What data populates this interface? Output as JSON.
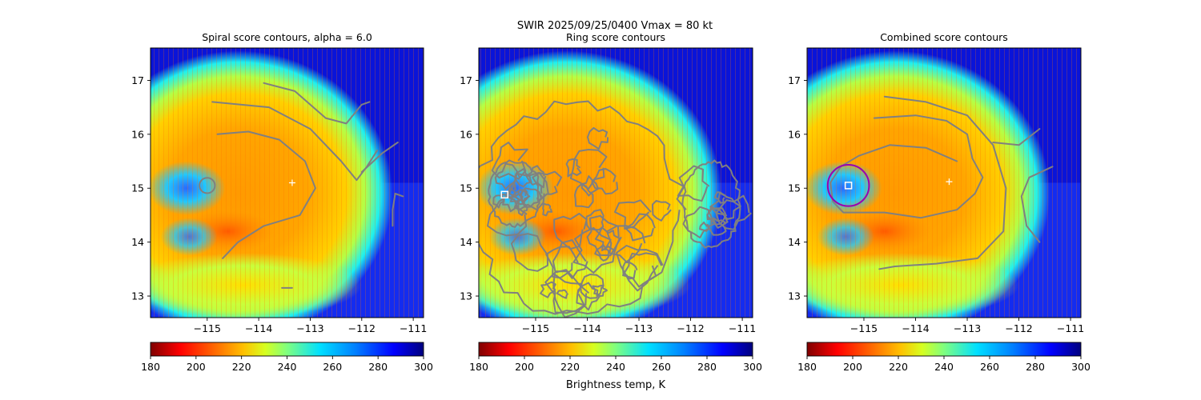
{
  "figure": {
    "suptitle": "SWIR  2025/09/25/0400    Vmax = 80 kt",
    "colorbar_label": "Brightness temp, K"
  },
  "chart_data": [
    {
      "type": "heatmap",
      "title": "Spiral score contours, alpha =  6.0",
      "xlim": [
        -116.1,
        -110.8
      ],
      "ylim": [
        12.6,
        17.6
      ],
      "xticks": [
        -115,
        -114,
        -113,
        -112,
        -111
      ],
      "xtick_labels": [
        "−115",
        "−114",
        "−113",
        "−112",
        "−111"
      ],
      "yticks": [
        13,
        14,
        15,
        16,
        17
      ],
      "ytick_labels": [
        "13",
        "14",
        "15",
        "16",
        "17"
      ],
      "storm_center": [
        -113.35,
        15.1
      ],
      "contours": [
        [
          [
            -114.8,
            16.0
          ],
          [
            -114.2,
            16.05
          ],
          [
            -113.6,
            15.9
          ],
          [
            -113.1,
            15.5
          ],
          [
            -112.9,
            15.0
          ],
          [
            -113.2,
            14.5
          ],
          [
            -113.9,
            14.3
          ],
          [
            -114.4,
            14.0
          ],
          [
            -114.7,
            13.7
          ]
        ],
        [
          [
            -114.9,
            16.6
          ],
          [
            -113.8,
            16.5
          ],
          [
            -113.0,
            16.1
          ],
          [
            -112.4,
            15.5
          ],
          [
            -112.1,
            15.15
          ],
          [
            -111.9,
            15.4
          ],
          [
            -111.7,
            15.7
          ]
        ],
        [
          [
            -113.9,
            16.95
          ],
          [
            -113.3,
            16.8
          ],
          [
            -112.7,
            16.3
          ],
          [
            -112.3,
            16.2
          ],
          [
            -112.0,
            16.55
          ],
          [
            -111.85,
            16.6
          ]
        ],
        [
          [
            -112.0,
            15.3
          ],
          [
            -111.6,
            15.65
          ],
          [
            -111.3,
            15.85
          ]
        ],
        [
          [
            -111.2,
            14.85
          ],
          [
            -111.35,
            14.9
          ],
          [
            -111.4,
            14.6
          ],
          [
            -111.4,
            14.3
          ]
        ],
        [
          [
            -113.55,
            13.15
          ],
          [
            -113.35,
            13.15
          ]
        ]
      ],
      "marked_circle": {
        "center": [
          -115.0,
          15.05
        ],
        "radius_deg": 0.15
      },
      "colormap": {
        "name": "jet_r",
        "vmin": 180,
        "vmax": 300,
        "ticks": [
          180,
          200,
          220,
          240,
          260,
          280,
          300
        ]
      }
    },
    {
      "type": "heatmap",
      "title": "Ring score contours",
      "xlim": [
        -116.1,
        -110.8
      ],
      "ylim": [
        12.6,
        17.6
      ],
      "xticks": [
        -115,
        -114,
        -113,
        -112,
        -111
      ],
      "xtick_labels": [
        "−115",
        "−114",
        "−113",
        "−112",
        "−111"
      ],
      "yticks": [
        13,
        14,
        15,
        16,
        17
      ],
      "ytick_labels": [
        "13",
        "14",
        "15",
        "16",
        "17"
      ],
      "best_ring_center": [
        -115.6,
        14.88
      ],
      "colormap": {
        "name": "jet_r",
        "vmin": 180,
        "vmax": 300,
        "ticks": [
          180,
          200,
          220,
          240,
          260,
          280,
          300
        ]
      }
    },
    {
      "type": "heatmap",
      "title": "Combined score contours",
      "xlim": [
        -116.1,
        -110.8
      ],
      "ylim": [
        12.6,
        17.6
      ],
      "xticks": [
        -115,
        -114,
        -113,
        -112,
        -111
      ],
      "xtick_labels": [
        "−115",
        "−114",
        "−113",
        "−112",
        "−111"
      ],
      "yticks": [
        13,
        14,
        15,
        16,
        17
      ],
      "ytick_labels": [
        "13",
        "14",
        "15",
        "16",
        "17"
      ],
      "storm_center": [
        -113.35,
        15.12
      ],
      "best_center": [
        -115.3,
        15.05
      ],
      "center_circle_radius_deg": 0.4,
      "contours": [
        [
          [
            -114.8,
            16.3
          ],
          [
            -114.0,
            16.35
          ],
          [
            -113.4,
            16.25
          ],
          [
            -113.0,
            16.0
          ],
          [
            -112.9,
            15.55
          ],
          [
            -112.7,
            15.2
          ],
          [
            -112.85,
            14.9
          ],
          [
            -113.2,
            14.6
          ],
          [
            -113.9,
            14.45
          ],
          [
            -114.6,
            14.55
          ],
          [
            -115.4,
            14.55
          ],
          [
            -115.6,
            14.75
          ],
          [
            -115.65,
            15.1
          ],
          [
            -115.45,
            15.4
          ],
          [
            -115.1,
            15.6
          ],
          [
            -114.5,
            15.8
          ],
          [
            -113.8,
            15.75
          ],
          [
            -113.2,
            15.5
          ]
        ],
        [
          [
            -114.6,
            16.7
          ],
          [
            -113.8,
            16.6
          ],
          [
            -113.0,
            16.35
          ],
          [
            -112.5,
            15.8
          ],
          [
            -112.25,
            15.0
          ],
          [
            -112.3,
            14.2
          ],
          [
            -112.8,
            13.7
          ],
          [
            -113.6,
            13.6
          ],
          [
            -114.4,
            13.55
          ],
          [
            -114.7,
            13.5
          ]
        ],
        [
          [
            -112.5,
            15.85
          ],
          [
            -112.0,
            15.8
          ],
          [
            -111.6,
            16.1
          ]
        ],
        [
          [
            -111.6,
            14.0
          ],
          [
            -111.85,
            14.3
          ],
          [
            -111.95,
            14.85
          ],
          [
            -111.8,
            15.2
          ],
          [
            -111.35,
            15.4
          ]
        ]
      ],
      "colormap": {
        "name": "jet_r",
        "vmin": 180,
        "vmax": 300,
        "ticks": [
          180,
          200,
          220,
          240,
          260,
          280,
          300
        ]
      }
    }
  ]
}
